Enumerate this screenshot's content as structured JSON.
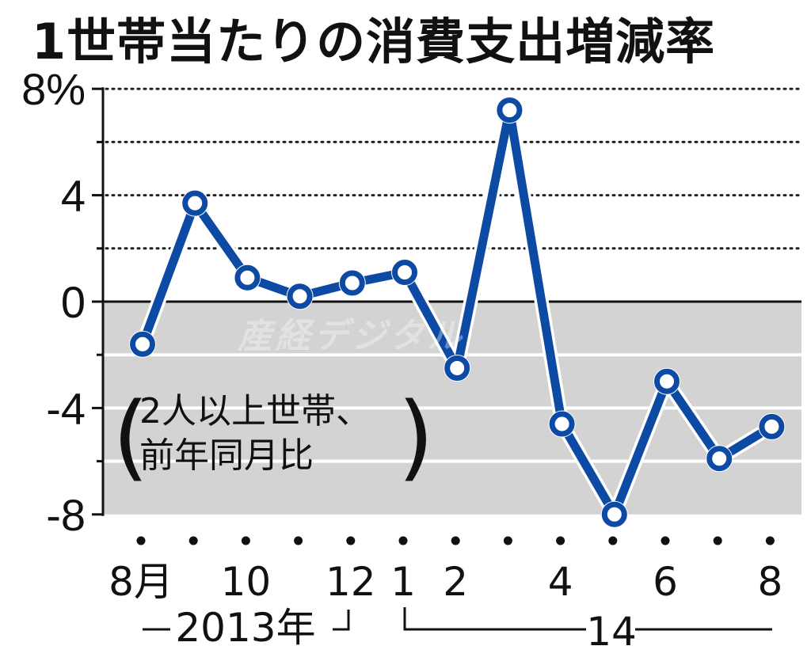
{
  "title": "1世帯当たりの消費支出増減率",
  "note": {
    "line1": "2人以上世帯、",
    "line2": "前年同月比",
    "open_paren": "(",
    "close_paren": ")"
  },
  "watermark": "産経デジタル",
  "colors": {
    "line": "#0d4aa3",
    "negative_band": "#d3d3d3",
    "axis": "#111111",
    "marker_fill": "#ffffff"
  },
  "y_axis": {
    "ticks": [
      {
        "value": 8,
        "label": "8%"
      },
      {
        "value": 4,
        "label": "4"
      },
      {
        "value": 0,
        "label": "0"
      },
      {
        "value": -4,
        "label": "-4"
      },
      {
        "value": -8,
        "label": "-8"
      }
    ],
    "minor_ticks": [
      6,
      2,
      -2,
      -6
    ]
  },
  "x_axis": {
    "labels": [
      {
        "index": 0,
        "label": "8月"
      },
      {
        "index": 2,
        "label": "10"
      },
      {
        "index": 4,
        "label": "12"
      },
      {
        "index": 5,
        "label": "1"
      },
      {
        "index": 6,
        "label": "2"
      },
      {
        "index": 8,
        "label": "4"
      },
      {
        "index": 10,
        "label": "6"
      },
      {
        "index": 12,
        "label": "8"
      }
    ],
    "year_groups": [
      {
        "label": "2013年",
        "start": 0,
        "end": 4
      },
      {
        "label": "14",
        "start": 5,
        "end": 12
      }
    ]
  },
  "chart_data": {
    "type": "line",
    "title": "1世帯当たりの消費支出増減率",
    "subtitle": "(2人以上世帯、前年同月比)",
    "xlabel": "",
    "ylabel": "%",
    "ylim": [
      -8,
      8
    ],
    "grid": true,
    "categories": [
      "2013-08",
      "2013-09",
      "2013-10",
      "2013-11",
      "2013-12",
      "2014-01",
      "2014-02",
      "2014-03",
      "2014-04",
      "2014-05",
      "2014-06",
      "2014-07",
      "2014-08"
    ],
    "tick_labels": [
      "8月",
      "",
      "10",
      "",
      "12",
      "1",
      "2",
      "",
      "4",
      "",
      "6",
      "",
      "8"
    ],
    "series": [
      {
        "name": "消費支出増減率",
        "values": [
          -1.6,
          3.7,
          0.9,
          0.2,
          0.7,
          1.1,
          -2.5,
          7.2,
          -4.6,
          -8.0,
          -3.0,
          -5.9,
          -4.7
        ]
      }
    ],
    "annotations": [
      "(2人以上世帯、前年同月比)",
      "2013年",
      "14"
    ]
  }
}
